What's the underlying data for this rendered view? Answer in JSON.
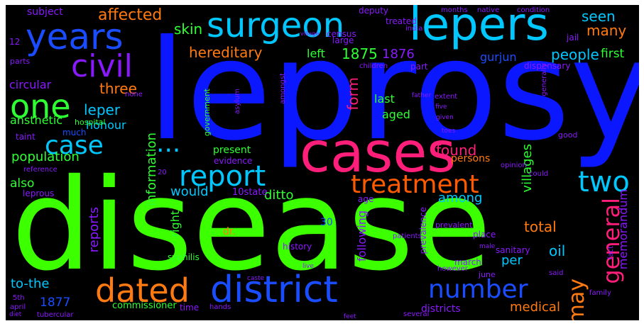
{
  "words": [
    {
      "text": "leprosy",
      "color": "#0b18ff"
    },
    {
      "text": "disease",
      "color": "#3cff00"
    },
    {
      "text": "cases",
      "color": "#ff1f7a"
    },
    {
      "text": "lepers",
      "color": "#00c8ff"
    },
    {
      "text": "surgeon",
      "color": "#00c8ff"
    },
    {
      "text": "years",
      "color": "#1a4dff"
    },
    {
      "text": "civil",
      "color": "#8a19ff"
    },
    {
      "text": "one",
      "color": "#2dff32"
    },
    {
      "text": "district",
      "color": "#1a4dff"
    },
    {
      "text": "dated",
      "color": "#ff7a10"
    },
    {
      "text": "report",
      "color": "#00c8ff"
    },
    {
      "text": "treatment",
      "color": "#ff5a00"
    },
    {
      "text": "number",
      "color": "#1a4dff"
    },
    {
      "text": "two",
      "color": "#00c8ff"
    },
    {
      "text": "case",
      "color": "#00c8ff"
    },
    {
      "text": "general",
      "color": "#ff1f7a"
    },
    {
      "text": "...",
      "color": "#00c8ff"
    },
    {
      "text": "may",
      "color": "#ff7a10"
    },
    {
      "text": "affected",
      "color": "#ff7a10"
    },
    {
      "text": "hereditary",
      "color": "#ff7a10"
    },
    {
      "text": "skin",
      "color": "#2dff32"
    },
    {
      "text": "seen",
      "color": "#00c8ff"
    },
    {
      "text": "many",
      "color": "#ff7a10"
    },
    {
      "text": "1875",
      "color": "#2dff32"
    },
    {
      "text": "1876",
      "color": "#8a19ff"
    },
    {
      "text": "people",
      "color": "#00c8ff"
    },
    {
      "text": "first",
      "color": "#2dff32"
    },
    {
      "text": "left",
      "color": "#2dff32"
    },
    {
      "text": "gurjun",
      "color": "#1a4dff"
    },
    {
      "text": "three",
      "color": "#ff7a10"
    },
    {
      "text": "leper",
      "color": "#00c8ff"
    },
    {
      "text": "circular",
      "color": "#8a19ff"
    },
    {
      "text": "form",
      "color": "#ff1f7a"
    },
    {
      "text": "last",
      "color": "#2dff32"
    },
    {
      "text": "aged",
      "color": "#2dff32"
    },
    {
      "text": "honour",
      "color": "#00c8ff"
    },
    {
      "text": "ansthetic",
      "color": "#2dff32"
    },
    {
      "text": "population",
      "color": "#2dff32"
    },
    {
      "text": "found",
      "color": "#ff1f7a"
    },
    {
      "text": "villages",
      "color": "#2dff32"
    },
    {
      "text": "information",
      "color": "#2dff32"
    },
    {
      "text": "would",
      "color": "#00c8ff"
    },
    {
      "text": "among",
      "color": "#00c8ff"
    },
    {
      "text": "also",
      "color": "#2dff32"
    },
    {
      "text": "ditto",
      "color": "#2dff32"
    },
    {
      "text": "reports",
      "color": "#8a19ff"
    },
    {
      "text": "right",
      "color": "#2dff32"
    },
    {
      "text": "total",
      "color": "#ff7a10"
    },
    {
      "text": "oil",
      "color": "#00c8ff"
    },
    {
      "text": "per",
      "color": "#00c8ff"
    },
    {
      "text": "memorandum",
      "color": "#8a19ff"
    },
    {
      "text": "persons",
      "color": "#ff7a10"
    },
    {
      "text": "present",
      "color": "#2dff32"
    },
    {
      "text": "following",
      "color": "#8a19ff"
    },
    {
      "text": "dr.",
      "color": "#ff7a10"
    },
    {
      "text": "to-the",
      "color": "#00c8ff"
    },
    {
      "text": "1877",
      "color": "#1a4dff"
    },
    {
      "text": "commissioner",
      "color": "#2dff32"
    },
    {
      "text": "districts",
      "color": "#8a19ff"
    },
    {
      "text": "medical",
      "color": "#ff7a10"
    },
    {
      "text": "subject",
      "color": "#8a19ff"
    },
    {
      "text": "deputy",
      "color": "#8a19ff"
    },
    {
      "text": "treated",
      "color": "#8a19ff"
    },
    {
      "text": "census",
      "color": "#8a19ff"
    },
    {
      "text": "large",
      "color": "#8a19ff"
    },
    {
      "text": "village",
      "color": "#8a19ff"
    },
    {
      "text": "children",
      "color": "#8a19ff"
    },
    {
      "text": "part",
      "color": "#8a19ff"
    },
    {
      "text": "dispensary",
      "color": "#8a19ff"
    },
    {
      "text": "hospital",
      "color": "#2dff32"
    },
    {
      "text": "much",
      "color": "#1a4dff"
    },
    {
      "text": "none",
      "color": "#8a19ff"
    },
    {
      "text": "taint",
      "color": "#8a19ff"
    },
    {
      "text": "reference",
      "color": "#8a19ff"
    },
    {
      "text": "government",
      "color": "#2dff32"
    },
    {
      "text": "evidence",
      "color": "#8a19ff"
    },
    {
      "text": "age",
      "color": "#8a19ff"
    },
    {
      "text": "10state",
      "color": "#8a19ff"
    },
    {
      "text": "30",
      "color": "#1a4dff"
    },
    {
      "text": "syphilis",
      "color": "#2dff32"
    },
    {
      "text": "history",
      "color": "#8a19ff"
    },
    {
      "text": "sanitary",
      "color": "#8a19ff"
    },
    {
      "text": "march",
      "color": "#8a19ff"
    },
    {
      "text": "june",
      "color": "#8a19ff"
    },
    {
      "text": "however",
      "color": "#8a19ff"
    },
    {
      "text": "prevalence",
      "color": "#8a19ff"
    },
    {
      "text": "prevalent",
      "color": "#8a19ff"
    },
    {
      "text": "place",
      "color": "#8a19ff"
    },
    {
      "text": "patients",
      "color": "#8a19ff"
    },
    {
      "text": "generally",
      "color": "#8a19ff"
    },
    {
      "text": "time",
      "color": "#8a19ff"
    },
    {
      "text": "hands",
      "color": "#8a19ff"
    },
    {
      "text": "several",
      "color": "#8a19ff"
    },
    {
      "text": "family",
      "color": "#8a19ff"
    },
    {
      "text": "said",
      "color": "#8a19ff"
    },
    {
      "text": "good",
      "color": "#8a19ff"
    },
    {
      "text": "fact",
      "color": "#8a19ff"
    },
    {
      "text": "extent",
      "color": "#8a19ff"
    },
    {
      "text": "five",
      "color": "#8a19ff"
    },
    {
      "text": "given",
      "color": "#8a19ff"
    },
    {
      "text": "amongst",
      "color": "#8a19ff"
    },
    {
      "text": "leprous",
      "color": "#8a19ff"
    },
    {
      "text": "april",
      "color": "#8a19ff"
    },
    {
      "text": "5th",
      "color": "#8a19ff"
    },
    {
      "text": "diet",
      "color": "#8a19ff"
    },
    {
      "text": "tubercular",
      "color": "#8a19ff"
    },
    {
      "text": "feet",
      "color": "#8a19ff"
    },
    {
      "text": "12",
      "color": "#8a19ff"
    },
    {
      "text": "parts",
      "color": "#8a19ff"
    },
    {
      "text": "india",
      "color": "#8a19ff"
    },
    {
      "text": "jail",
      "color": "#8a19ff"
    },
    {
      "text": "months",
      "color": "#8a19ff"
    },
    {
      "text": "native",
      "color": "#8a19ff"
    },
    {
      "text": "condition",
      "color": "#8a19ff"
    },
    {
      "text": "father",
      "color": "#8a19ff"
    },
    {
      "text": "toes",
      "color": "#8a19ff"
    },
    {
      "text": "asylum",
      "color": "#8a19ff"
    },
    {
      "text": "opinion",
      "color": "#8a19ff"
    },
    {
      "text": "could",
      "color": "#8a19ff"
    },
    {
      "text": "male",
      "color": "#8a19ff"
    },
    {
      "text": "20",
      "color": "#8a19ff"
    },
    {
      "text": "caste",
      "color": "#8a19ff"
    },
    {
      "text": "live",
      "color": "#8a19ff"
    }
  ]
}
